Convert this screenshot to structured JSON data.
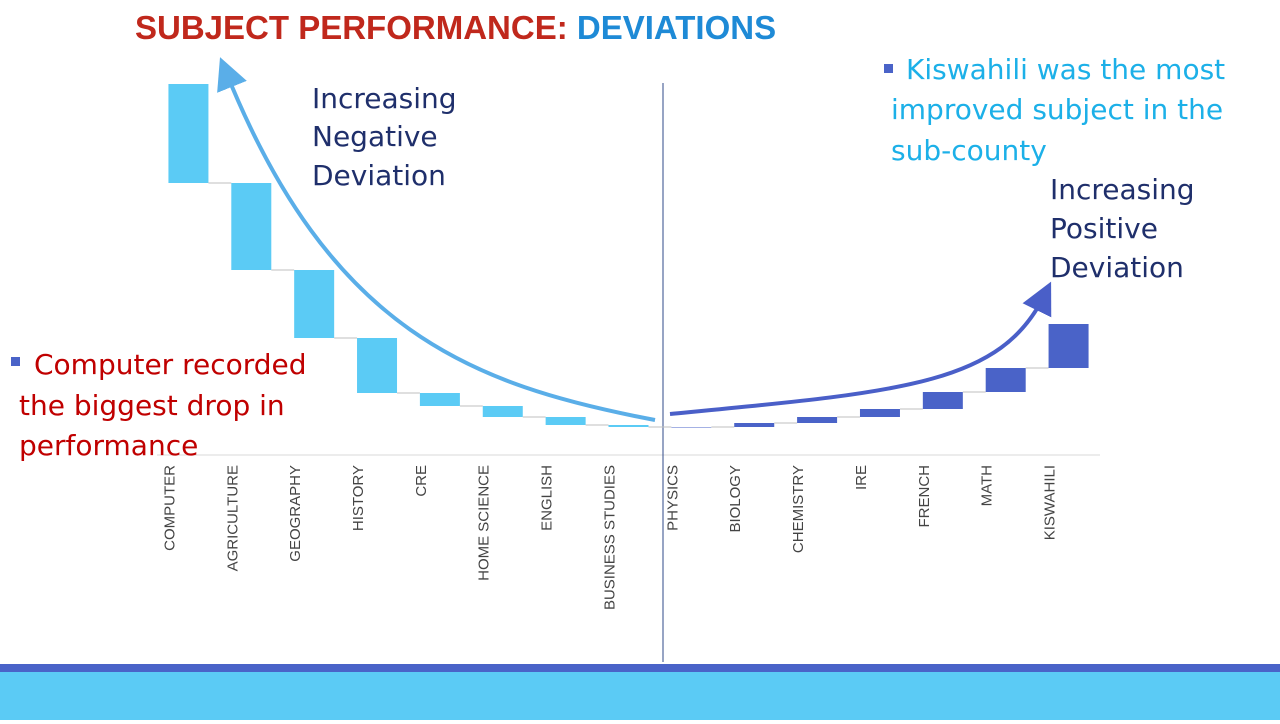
{
  "chart_data": {
    "type": "waterfall",
    "title": "SUBJECT PERFORMANCE:",
    "title_highlight": "DEVIATIONS",
    "categories": [
      "COMPUTER",
      "AGRICULTURE",
      "GEOGRAPHY",
      "HISTORY",
      "CRE",
      "HOME SCIENCE",
      "ENGLISH",
      "BUSINESS STUDIES",
      "PHYSICS",
      "BIOLOGY",
      "CHEMISTRY",
      "IRE",
      "FRENCH",
      "MATH",
      "KISWAHILI"
    ],
    "values": [
      -0.99,
      -0.87,
      -0.68,
      -0.55,
      -0.13,
      -0.11,
      -0.08,
      -0.02,
      0,
      0.04,
      0.06,
      0.08,
      0.17,
      0.24,
      0.44
    ],
    "negative_color": "#5bcbf5",
    "positive_color": "#4a63c8",
    "ylim": [
      -3.71,
      0
    ],
    "annotations": {
      "negative_trend": [
        "Increasing",
        "Negative",
        "Deviation"
      ],
      "positive_trend": [
        "Increasing",
        "Positive",
        "Deviation"
      ],
      "left_note": [
        "Computer recorded",
        "the biggest drop in",
        "performance"
      ],
      "right_note": [
        "Kiswahili was the most",
        "improved subject in the",
        "sub-county"
      ]
    }
  }
}
